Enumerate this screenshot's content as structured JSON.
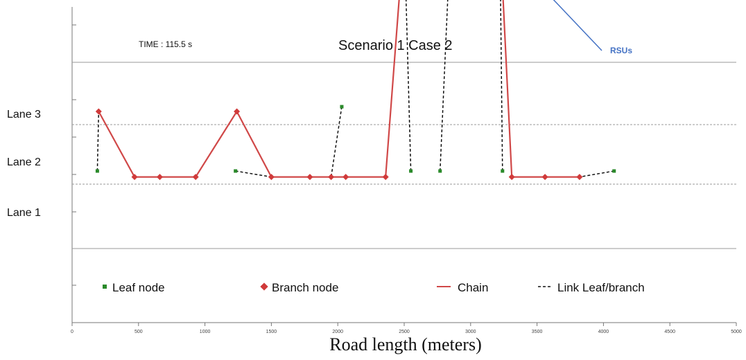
{
  "chart_data": {
    "type": "line",
    "title": "Scenario 1 Case 2",
    "time_label": "TIME : 115.5 s",
    "xlabel": "Road length (meters)",
    "xlim": [
      0,
      5000
    ],
    "x_ticks": [
      "0",
      "500",
      "1000",
      "1500",
      "2000",
      "2500",
      "3000",
      "3500",
      "4000",
      "4500",
      "5000"
    ],
    "y_categories": [
      "Lane 1",
      "Lane 2",
      "Lane 3"
    ],
    "annotation": {
      "text": "RSUs",
      "arrow_target": {
        "x": 3120,
        "y": 5.0
      }
    },
    "legend": [
      {
        "label": "Leaf node",
        "marker": "square",
        "color": "#2a8a2a"
      },
      {
        "label": "Branch node",
        "marker": "diamond",
        "color": "#d03a3a"
      },
      {
        "label": "Chain",
        "marker": "line",
        "color": "#d04848"
      },
      {
        "label": "Link Leaf/branch",
        "marker": "dashed",
        "color": "#111111"
      }
    ],
    "series": [
      {
        "type": "chain",
        "points": [
          {
            "x": 200,
            "y": 2.0
          },
          {
            "x": 470,
            "y": 0.9
          },
          {
            "x": 660,
            "y": 0.9
          },
          {
            "x": 930,
            "y": 0.9
          },
          {
            "x": 1240,
            "y": 2.0
          },
          {
            "x": 1500,
            "y": 0.9
          },
          {
            "x": 1790,
            "y": 0.9
          },
          {
            "x": 1950,
            "y": 0.9
          },
          {
            "x": 2060,
            "y": 0.9
          },
          {
            "x": 2360,
            "y": 0.9
          },
          {
            "x": 2500,
            "y": 5.0
          },
          {
            "x": 2850,
            "y": 5.0
          },
          {
            "x": 3120,
            "y": 5.0
          },
          {
            "x": 3220,
            "y": 5.0
          },
          {
            "x": 3310,
            "y": 0.9
          },
          {
            "x": 3560,
            "y": 0.9
          },
          {
            "x": 3820,
            "y": 0.9
          }
        ]
      },
      {
        "type": "branch_nodes",
        "points": [
          {
            "x": 200,
            "y": 2.0
          },
          {
            "x": 470,
            "y": 0.9
          },
          {
            "x": 660,
            "y": 0.9
          },
          {
            "x": 930,
            "y": 0.9
          },
          {
            "x": 1240,
            "y": 2.0
          },
          {
            "x": 1500,
            "y": 0.9
          },
          {
            "x": 1790,
            "y": 0.9
          },
          {
            "x": 1950,
            "y": 0.9
          },
          {
            "x": 2060,
            "y": 0.9
          },
          {
            "x": 2360,
            "y": 0.9
          },
          {
            "x": 2500,
            "y": 5.0
          },
          {
            "x": 2850,
            "y": 5.0
          },
          {
            "x": 3220,
            "y": 5.0
          },
          {
            "x": 3310,
            "y": 0.9
          },
          {
            "x": 3560,
            "y": 0.9
          },
          {
            "x": 3820,
            "y": 0.9
          }
        ]
      },
      {
        "type": "leaf_nodes",
        "points": [
          {
            "x": 190,
            "y": 1.0
          },
          {
            "x": 1230,
            "y": 1.0
          },
          {
            "x": 2030,
            "y": 2.08
          },
          {
            "x": 2550,
            "y": 1.0
          },
          {
            "x": 2770,
            "y": 1.0
          },
          {
            "x": 3240,
            "y": 1.0
          },
          {
            "x": 4080,
            "y": 1.0
          }
        ]
      },
      {
        "type": "links",
        "segments": [
          [
            {
              "x": 190,
              "y": 1.0
            },
            {
              "x": 200,
              "y": 2.0
            }
          ],
          [
            {
              "x": 1230,
              "y": 1.0
            },
            {
              "x": 1500,
              "y": 0.9
            }
          ],
          [
            {
              "x": 2030,
              "y": 2.08
            },
            {
              "x": 1950,
              "y": 0.9
            }
          ],
          [
            {
              "x": 2550,
              "y": 1.0
            },
            {
              "x": 2500,
              "y": 5.0
            }
          ],
          [
            {
              "x": 2770,
              "y": 1.0
            },
            {
              "x": 2850,
              "y": 5.0
            }
          ],
          [
            {
              "x": 3240,
              "y": 1.0
            },
            {
              "x": 3220,
              "y": 5.0
            }
          ],
          [
            {
              "x": 4080,
              "y": 1.0
            },
            {
              "x": 3820,
              "y": 0.9
            }
          ]
        ]
      }
    ]
  }
}
